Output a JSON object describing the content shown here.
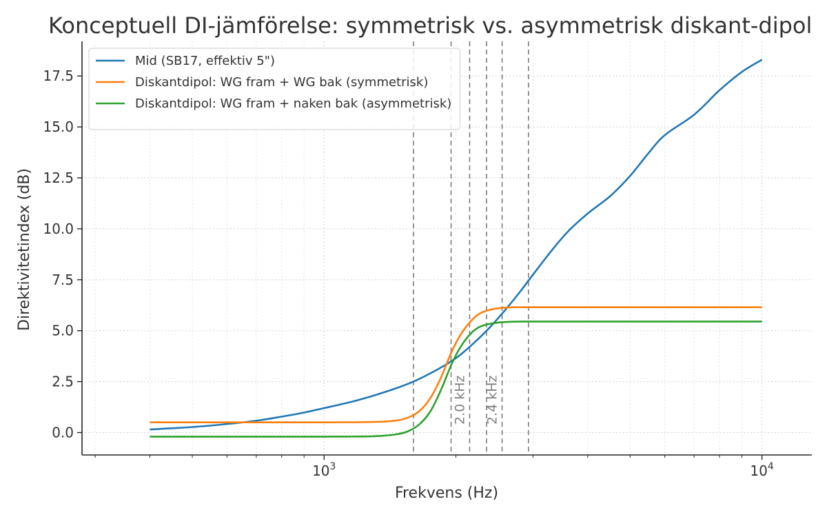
{
  "chart_data": {
    "type": "line",
    "title": "Konceptuell DI-jämförelse: symmetrisk vs. asymmetrisk diskant-dipol",
    "xlabel": "Frekvens (Hz)",
    "ylabel": "Direktivitetindex (dB)",
    "xscale": "log",
    "xlim": [
      280,
      13000
    ],
    "ylim": [
      -1.1,
      19.2
    ],
    "grid": true,
    "legend_position": "top-left",
    "x_ticks": [
      {
        "value": 1000,
        "label": "10",
        "exp": "3"
      },
      {
        "value": 10000,
        "label": "10",
        "exp": "4"
      }
    ],
    "y_ticks": [
      {
        "value": 0.0,
        "label": "0.0"
      },
      {
        "value": 2.5,
        "label": "2.5"
      },
      {
        "value": 5.0,
        "label": "5.0"
      },
      {
        "value": 7.5,
        "label": "7.5"
      },
      {
        "value": 10.0,
        "label": "10.0"
      },
      {
        "value": 12.5,
        "label": "12.5"
      },
      {
        "value": 15.0,
        "label": "15.0"
      },
      {
        "value": 17.5,
        "label": "17.5"
      }
    ],
    "x_minor_ticks": [
      300,
      400,
      500,
      600,
      700,
      800,
      900,
      2000,
      3000,
      4000,
      5000,
      6000,
      7000,
      8000,
      9000
    ],
    "vertical_lines": [
      {
        "x": 1600,
        "label": ""
      },
      {
        "x": 1950,
        "label": ""
      },
      {
        "x": 2150,
        "label": "2.0 kHz"
      },
      {
        "x": 2350,
        "label": ""
      },
      {
        "x": 2550,
        "label": "2.4 kHz"
      },
      {
        "x": 2930,
        "label": ""
      }
    ],
    "series": [
      {
        "name": "Mid (SB17, effektiv 5\")",
        "color": "#1f77b4",
        "x": [
          400,
          500,
          600,
          700,
          800,
          900,
          1000,
          1150,
          1300,
          1450,
          1600,
          1800,
          2000,
          2200,
          2400,
          2600,
          2800,
          3000,
          3300,
          3600,
          4000,
          4500,
          5000,
          5500,
          6000,
          7000,
          8000,
          9000,
          10000
        ],
        "y": [
          0.15,
          0.27,
          0.42,
          0.58,
          0.78,
          0.98,
          1.2,
          1.5,
          1.82,
          2.15,
          2.5,
          3.05,
          3.65,
          4.4,
          5.2,
          6.05,
          6.9,
          7.75,
          8.9,
          9.85,
          10.75,
          11.6,
          12.6,
          13.7,
          14.6,
          15.6,
          16.8,
          17.7,
          18.3
        ]
      },
      {
        "name": "Diskantdipol: WG fram + WG bak (symmetrisk)",
        "color": "#ff7f0e",
        "x": [
          400,
          700,
          1000,
          1300,
          1450,
          1550,
          1650,
          1750,
          1850,
          1950,
          2050,
          2150,
          2250,
          2350,
          2500,
          2700,
          3000,
          4000,
          6000,
          10000
        ],
        "y": [
          0.5,
          0.5,
          0.5,
          0.52,
          0.58,
          0.72,
          1.05,
          1.7,
          2.7,
          3.9,
          4.8,
          5.4,
          5.8,
          5.98,
          6.1,
          6.15,
          6.15,
          6.15,
          6.15,
          6.15
        ]
      },
      {
        "name": "Diskantdipol: WG fram + naken bak (asymmetrisk)",
        "color": "#2ca02c",
        "x": [
          400,
          700,
          1000,
          1300,
          1450,
          1550,
          1650,
          1750,
          1850,
          1950,
          2050,
          2150,
          2250,
          2350,
          2500,
          2700,
          3000,
          4000,
          6000,
          10000
        ],
        "y": [
          -0.2,
          -0.2,
          -0.2,
          -0.18,
          -0.1,
          0.05,
          0.4,
          1.05,
          2.1,
          3.3,
          4.2,
          4.8,
          5.15,
          5.3,
          5.4,
          5.44,
          5.45,
          5.45,
          5.45,
          5.45
        ]
      }
    ]
  }
}
